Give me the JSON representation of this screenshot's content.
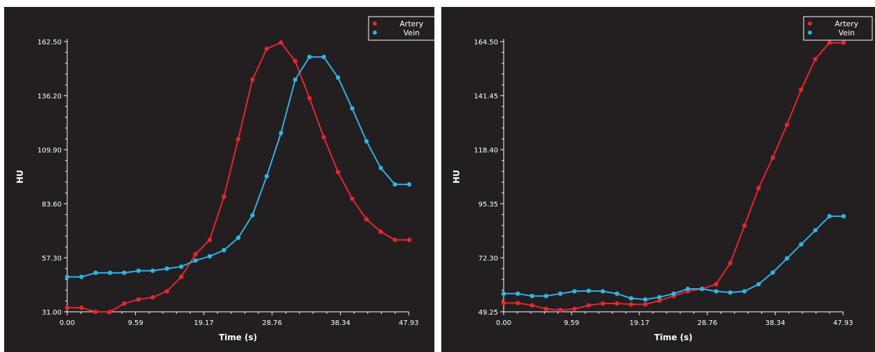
{
  "chart_data": [
    {
      "type": "line",
      "xlabel": "Time (s)",
      "ylabel": "HU",
      "xlim": [
        0,
        47.93
      ],
      "ylim": [
        31.0,
        162.5
      ],
      "xticks": [
        "0.00",
        "9.59",
        "19.17",
        "28.76",
        "38.34",
        "47.93"
      ],
      "yticks": [
        "31.00",
        "57.30",
        "83.60",
        "109.90",
        "136.20",
        "162.50"
      ],
      "grid": false,
      "legend": "top-right",
      "series": [
        {
          "name": "Artery",
          "color": "#e8262d",
          "x": [
            0.0,
            2.0,
            4.0,
            6.0,
            8.0,
            10.0,
            12.0,
            14.0,
            16.0,
            18.0,
            20.0,
            22.0,
            24.0,
            26.0,
            28.0,
            30.0,
            32.0,
            34.0,
            36.0,
            38.0,
            40.0,
            42.0,
            44.0,
            46.0,
            48.0
          ],
          "y": [
            33,
            33,
            31,
            31,
            35,
            37,
            38,
            41,
            48,
            59,
            66,
            87,
            115,
            144,
            159,
            162,
            153,
            135,
            116,
            99,
            86,
            76,
            70,
            66,
            66
          ]
        },
        {
          "name": "Vein",
          "color": "#2fb3e8",
          "x": [
            0.0,
            2.0,
            4.0,
            6.0,
            8.0,
            10.0,
            12.0,
            14.0,
            16.0,
            18.0,
            20.0,
            22.0,
            24.0,
            26.0,
            28.0,
            30.0,
            32.0,
            34.0,
            36.0,
            38.0,
            40.0,
            42.0,
            44.0,
            46.0,
            48.0
          ],
          "y": [
            48,
            48,
            50,
            50,
            50,
            51,
            51,
            52,
            53,
            56,
            58,
            61,
            67,
            78,
            97,
            118,
            144,
            155,
            155,
            145,
            130,
            114,
            101,
            93,
            93
          ]
        }
      ]
    },
    {
      "type": "line",
      "xlabel": "Time (s)",
      "ylabel": "HU",
      "xlim": [
        0,
        47.93
      ],
      "ylim": [
        49.25,
        164.5
      ],
      "xticks": [
        "0.00",
        "9.59",
        "19.17",
        "28.76",
        "38.34",
        "47.93"
      ],
      "yticks": [
        "49.25",
        "72.30",
        "95.35",
        "118.40",
        "141.45",
        "164.50"
      ],
      "grid": false,
      "legend": "top-right",
      "series": [
        {
          "name": "Artery",
          "color": "#e8262d",
          "x": [
            0.0,
            2.0,
            4.0,
            6.0,
            8.0,
            10.0,
            12.0,
            14.0,
            16.0,
            18.0,
            20.0,
            22.0,
            24.0,
            26.0,
            28.0,
            30.0,
            32.0,
            34.0,
            36.0,
            38.0,
            40.0,
            42.0,
            44.0,
            46.0,
            48.0
          ],
          "y": [
            53,
            53,
            52,
            50.5,
            50,
            50.5,
            52,
            52.8,
            52.8,
            52.4,
            52.4,
            54,
            56,
            58,
            59,
            61,
            70,
            86,
            102,
            115,
            129,
            144,
            157,
            164,
            164
          ]
        },
        {
          "name": "Vein",
          "color": "#2fb3e8",
          "x": [
            0.0,
            2.0,
            4.0,
            6.0,
            8.0,
            10.0,
            12.0,
            14.0,
            16.0,
            18.0,
            20.0,
            22.0,
            24.0,
            26.0,
            28.0,
            30.0,
            32.0,
            34.0,
            36.0,
            38.0,
            40.0,
            42.0,
            44.0,
            46.0,
            48.0
          ],
          "y": [
            57,
            57,
            56,
            56,
            57,
            58,
            58.2,
            58,
            57,
            55,
            54.5,
            55.5,
            57,
            59,
            59,
            58,
            57.5,
            58,
            61,
            66,
            72,
            78,
            84,
            90,
            90
          ]
        }
      ]
    }
  ]
}
